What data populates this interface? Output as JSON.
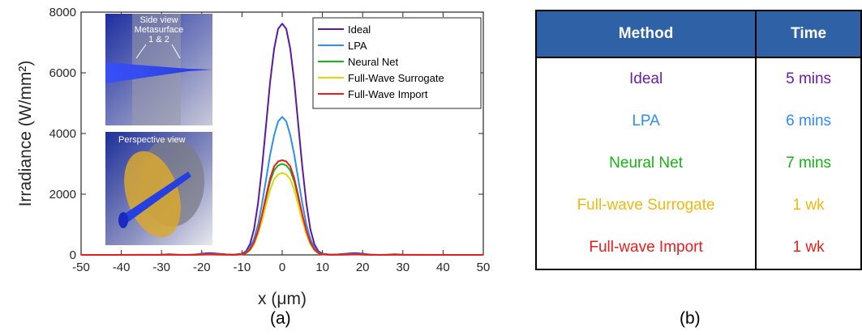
{
  "chart_data": {
    "type": "line",
    "xlabel": "x (μm)",
    "ylabel": "Irradiance (W/mm²)",
    "xlim": [
      -50,
      50
    ],
    "ylim": [
      0,
      8000
    ],
    "xticks": [
      "-50",
      "-40",
      "-30",
      "-20",
      "-10",
      "0",
      "10",
      "20",
      "30",
      "40",
      "50"
    ],
    "yticks": [
      "0",
      "2000",
      "4000",
      "6000",
      "8000"
    ],
    "grid": false,
    "legend_position": "top-right",
    "x": [
      -50,
      -40,
      -30,
      -28,
      -26,
      -24,
      -22,
      -20,
      -18,
      -16,
      -14,
      -12,
      -10,
      -9,
      -8,
      -7,
      -6,
      -5,
      -4,
      -3,
      -2,
      -1,
      0,
      1,
      2,
      3,
      4,
      5,
      6,
      7,
      8,
      9,
      10,
      12,
      14,
      16,
      18,
      20,
      22,
      24,
      26,
      28,
      30,
      40,
      50
    ],
    "series": [
      {
        "name": "Ideal",
        "color": "#5b1a9e",
        "values": [
          0,
          0,
          5,
          25,
          5,
          0,
          10,
          40,
          60,
          40,
          20,
          10,
          40,
          120,
          350,
          850,
          1700,
          2900,
          4300,
          5700,
          6800,
          7450,
          7620,
          7450,
          6800,
          5700,
          4300,
          2900,
          1700,
          850,
          350,
          120,
          40,
          10,
          20,
          40,
          60,
          40,
          10,
          0,
          5,
          25,
          5,
          0,
          0
        ]
      },
      {
        "name": "LPA",
        "color": "#2e8ef0",
        "values": [
          0,
          0,
          0,
          10,
          0,
          0,
          5,
          20,
          30,
          20,
          10,
          5,
          25,
          80,
          230,
          530,
          1000,
          1700,
          2500,
          3300,
          3950,
          4400,
          4550,
          4400,
          3950,
          3300,
          2500,
          1700,
          1000,
          530,
          230,
          80,
          25,
          5,
          10,
          20,
          30,
          20,
          5,
          0,
          0,
          10,
          0,
          0,
          0
        ]
      },
      {
        "name": "Neural Net",
        "color": "#17b317",
        "values": [
          0,
          0,
          0,
          5,
          0,
          0,
          0,
          10,
          15,
          10,
          5,
          0,
          20,
          60,
          170,
          400,
          760,
          1280,
          1880,
          2420,
          2790,
          2950,
          3000,
          2950,
          2790,
          2420,
          1880,
          1280,
          760,
          400,
          170,
          60,
          20,
          0,
          5,
          10,
          15,
          10,
          0,
          0,
          0,
          5,
          0,
          0,
          0
        ]
      },
      {
        "name": "Full-Wave Surrogate",
        "color": "#e3d40b",
        "values": [
          0,
          0,
          0,
          5,
          0,
          0,
          0,
          10,
          15,
          10,
          5,
          0,
          18,
          55,
          150,
          350,
          680,
          1130,
          1660,
          2140,
          2500,
          2650,
          2700,
          2650,
          2500,
          2140,
          1660,
          1130,
          680,
          350,
          150,
          55,
          18,
          0,
          5,
          10,
          15,
          10,
          0,
          0,
          0,
          5,
          0,
          0,
          0
        ]
      },
      {
        "name": "Full-Wave Import",
        "color": "#e81e1e",
        "values": [
          0,
          0,
          0,
          5,
          0,
          0,
          0,
          10,
          15,
          10,
          5,
          0,
          20,
          62,
          175,
          410,
          790,
          1330,
          1950,
          2520,
          2920,
          3080,
          3120,
          3080,
          2920,
          2520,
          1950,
          1330,
          790,
          410,
          175,
          62,
          20,
          0,
          5,
          10,
          15,
          10,
          0,
          0,
          0,
          5,
          0,
          0,
          0
        ]
      }
    ]
  },
  "inset": {
    "side_view_label": "Side view",
    "metasurface_label": "Metasurface",
    "metasurface_numbers": "1 & 2",
    "perspective_label": "Perspective view"
  },
  "captions": {
    "a": "(a)",
    "b": "(b)"
  },
  "table": {
    "header": {
      "method": "Method",
      "time": "Time"
    },
    "header_bg": "#2f61a7",
    "rows": [
      {
        "method": "Ideal",
        "time": "5 mins",
        "color": "#6a1fa6"
      },
      {
        "method": "LPA",
        "time": "6 mins",
        "color": "#2e8ef0"
      },
      {
        "method": "Neural Net",
        "time": "7 mins",
        "color": "#17b317"
      },
      {
        "method": "Full-wave Surrogate",
        "time": "1 wk",
        "color": "#f2b80f"
      },
      {
        "method": "Full-wave Import",
        "time": "1 wk",
        "color": "#e81e1e"
      }
    ]
  }
}
